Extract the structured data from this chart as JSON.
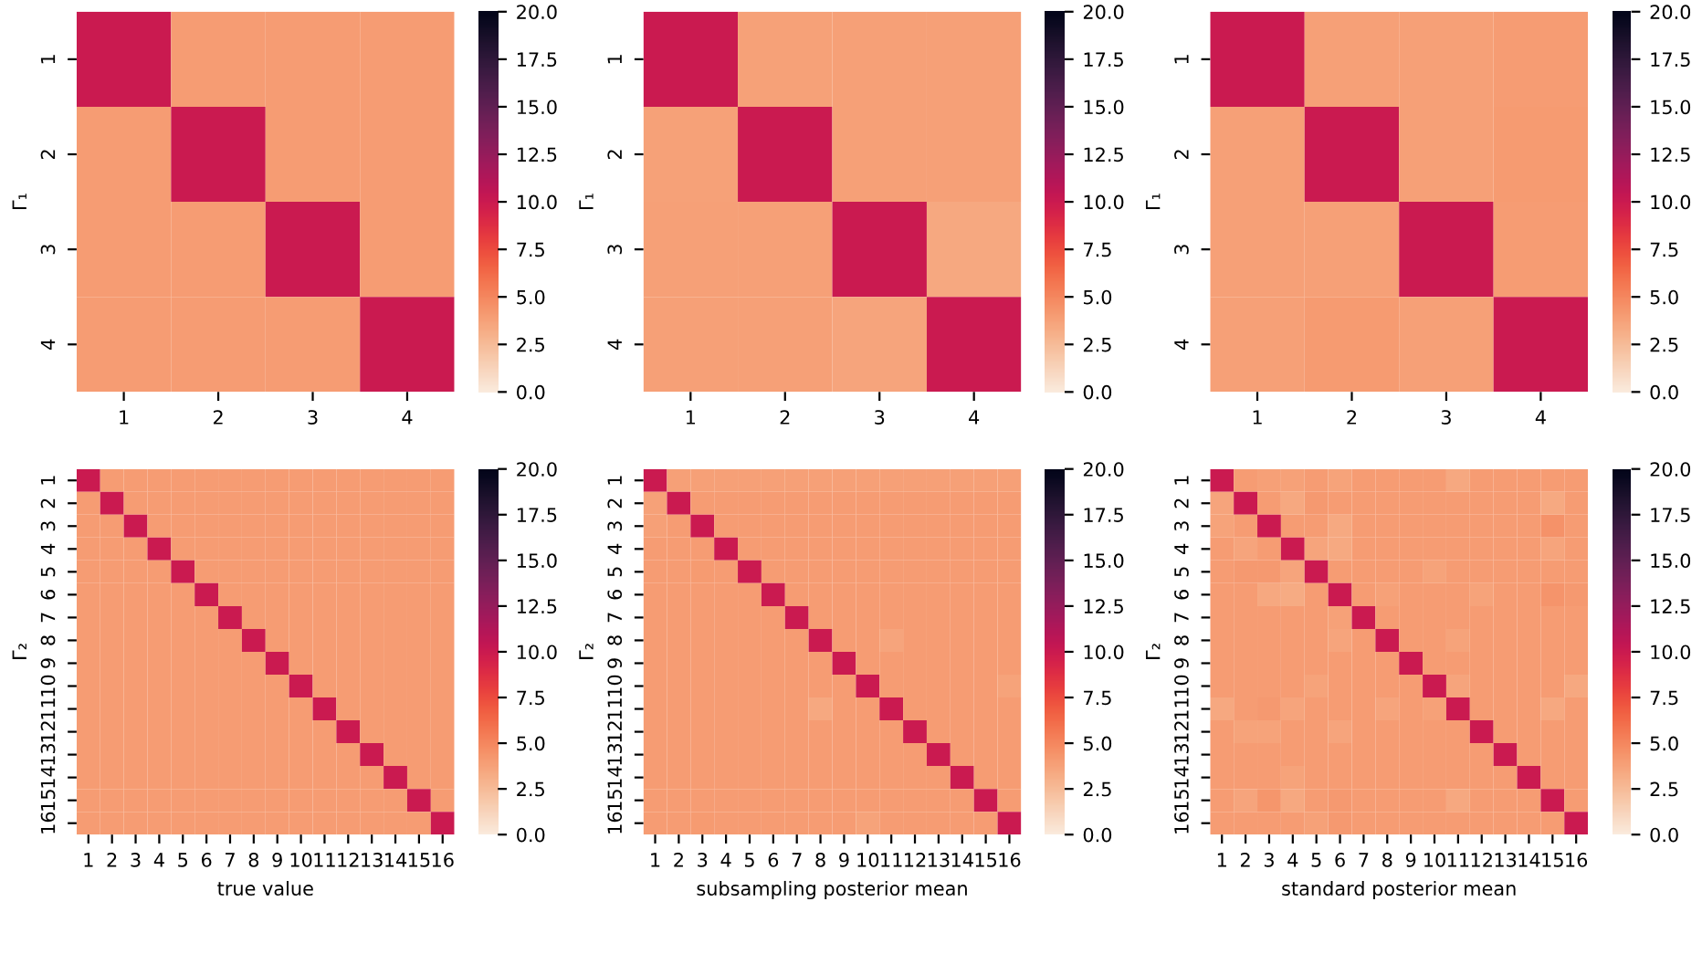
{
  "chart_data": [
    {
      "type": "heatmap",
      "ylabel": "Γ₁",
      "categories": [
        "1",
        "2",
        "3",
        "4"
      ],
      "y_categories": [
        "1",
        "2",
        "3",
        "4"
      ],
      "clim": [
        0,
        20
      ],
      "cticks": [
        {
          "value": 0,
          "label": "0.0"
        },
        {
          "value": 2.5,
          "label": "2.5"
        },
        {
          "value": 5,
          "label": "5.0"
        },
        {
          "value": 7.5,
          "label": "7.5"
        },
        {
          "value": 10,
          "label": "10.0"
        },
        {
          "value": 12.5,
          "label": "12.5"
        },
        {
          "value": 15,
          "label": "15.0"
        },
        {
          "value": 17.5,
          "label": "17.5"
        },
        {
          "value": 20,
          "label": "20.0"
        }
      ],
      "cells": [
        [
          10,
          4,
          4,
          4
        ],
        [
          4,
          10,
          4,
          4
        ],
        [
          4,
          4,
          10,
          4
        ],
        [
          4,
          4,
          4,
          10
        ]
      ]
    },
    {
      "type": "heatmap",
      "ylabel": "Γ₁",
      "categories": [
        "1",
        "2",
        "3",
        "4"
      ],
      "y_categories": [
        "1",
        "2",
        "3",
        "4"
      ],
      "clim": [
        0,
        20
      ],
      "cticks": [
        {
          "value": 0,
          "label": "0.0"
        },
        {
          "value": 2.5,
          "label": "2.5"
        },
        {
          "value": 5,
          "label": "5.0"
        },
        {
          "value": 7.5,
          "label": "7.5"
        },
        {
          "value": 10,
          "label": "10.0"
        },
        {
          "value": 12.5,
          "label": "12.5"
        },
        {
          "value": 15,
          "label": "15.0"
        },
        {
          "value": 17.5,
          "label": "17.5"
        },
        {
          "value": 20,
          "label": "20.0"
        }
      ],
      "cells": [
        [
          10,
          3.8,
          3.9,
          3.9
        ],
        [
          3.8,
          10,
          3.9,
          3.9
        ],
        [
          3.9,
          3.9,
          10,
          3.5
        ],
        [
          3.9,
          3.9,
          3.6,
          10
        ]
      ]
    },
    {
      "type": "heatmap",
      "ylabel": "Γ₁",
      "categories": [
        "1",
        "2",
        "3",
        "4"
      ],
      "y_categories": [
        "1",
        "2",
        "3",
        "4"
      ],
      "clim": [
        0,
        20
      ],
      "cticks": [
        {
          "value": 0,
          "label": "0.0"
        },
        {
          "value": 2.5,
          "label": "2.5"
        },
        {
          "value": 5,
          "label": "5.0"
        },
        {
          "value": 7.5,
          "label": "7.5"
        },
        {
          "value": 10,
          "label": "10.0"
        },
        {
          "value": 12.5,
          "label": "12.5"
        },
        {
          "value": 15,
          "label": "15.0"
        },
        {
          "value": 17.5,
          "label": "17.5"
        },
        {
          "value": 20,
          "label": "20.0"
        }
      ],
      "cells": [
        [
          10,
          3.9,
          3.9,
          4.0
        ],
        [
          3.9,
          10,
          3.9,
          4.1
        ],
        [
          3.9,
          3.9,
          10,
          4.0
        ],
        [
          3.9,
          4.1,
          3.9,
          10
        ]
      ]
    },
    {
      "type": "heatmap",
      "xlabel": "true value",
      "ylabel": "Γ₂",
      "categories": [
        "1",
        "2",
        "3",
        "4",
        "5",
        "6",
        "7",
        "8",
        "9",
        "10",
        "11",
        "12",
        "13",
        "14",
        "15",
        "16"
      ],
      "y_categories": [
        "1",
        "2",
        "3",
        "4",
        "5",
        "6",
        "7",
        "8",
        "9",
        "10",
        "11",
        "12",
        "13",
        "14",
        "15",
        "16"
      ],
      "clim": [
        0,
        20
      ],
      "cticks": [
        {
          "value": 0,
          "label": "0.0"
        },
        {
          "value": 2.5,
          "label": "2.5"
        },
        {
          "value": 5,
          "label": "5.0"
        },
        {
          "value": 7.5,
          "label": "7.5"
        },
        {
          "value": 10,
          "label": "10.0"
        },
        {
          "value": 12.5,
          "label": "12.5"
        },
        {
          "value": 15,
          "label": "15.0"
        },
        {
          "value": 17.5,
          "label": "17.5"
        },
        {
          "value": 20,
          "label": "20.0"
        }
      ],
      "cells": [
        [
          10,
          4,
          4,
          4,
          4,
          4,
          4,
          4,
          4,
          4,
          4,
          4,
          4,
          4,
          4,
          4
        ],
        [
          4,
          10,
          4,
          4,
          4,
          4,
          4,
          4,
          4,
          4,
          4,
          4,
          4,
          4,
          4,
          4
        ],
        [
          4,
          4,
          10,
          4,
          4,
          4,
          4,
          4,
          4,
          4,
          4,
          4,
          4,
          4,
          4,
          4
        ],
        [
          4,
          4,
          4,
          10,
          4,
          4,
          4,
          4,
          4,
          4,
          4,
          4,
          4,
          4,
          4,
          4
        ],
        [
          4,
          4,
          4,
          4,
          10,
          4,
          4,
          4,
          4,
          4,
          4,
          4,
          4,
          4,
          4,
          4
        ],
        [
          4,
          4,
          4,
          4,
          4,
          10,
          4,
          4,
          4,
          4,
          4,
          4,
          4,
          4,
          4,
          4
        ],
        [
          4,
          4,
          4,
          4,
          4,
          4,
          10,
          4,
          4,
          4,
          4,
          4,
          4,
          4,
          4,
          4
        ],
        [
          4,
          4,
          4,
          4,
          4,
          4,
          4,
          10,
          4,
          4,
          4,
          4,
          4,
          4,
          4,
          4
        ],
        [
          4,
          4,
          4,
          4,
          4,
          4,
          4,
          4,
          10,
          4,
          4,
          4,
          4,
          4,
          4,
          4
        ],
        [
          4,
          4,
          4,
          4,
          4,
          4,
          4,
          4,
          4,
          10,
          4,
          4,
          4,
          4,
          4,
          4
        ],
        [
          4,
          4,
          4,
          4,
          4,
          4,
          4,
          4,
          4,
          4,
          10,
          4,
          4,
          4,
          4,
          4
        ],
        [
          4,
          4,
          4,
          4,
          4,
          4,
          4,
          4,
          4,
          4,
          4,
          10,
          4,
          4,
          4,
          4
        ],
        [
          4,
          4,
          4,
          4,
          4,
          4,
          4,
          4,
          4,
          4,
          4,
          4,
          10,
          4,
          4,
          4
        ],
        [
          4,
          4,
          4,
          4,
          4,
          4,
          4,
          4,
          4,
          4,
          4,
          4,
          4,
          10,
          4,
          4
        ],
        [
          4,
          4,
          4,
          4,
          4,
          4,
          4,
          4,
          4,
          4,
          4,
          4,
          4,
          4,
          10,
          4
        ],
        [
          4,
          4,
          4,
          4,
          4,
          4,
          4,
          4,
          4,
          4,
          4,
          4,
          4,
          4,
          4,
          10
        ]
      ]
    },
    {
      "type": "heatmap",
      "xlabel": "subsampling posterior mean",
      "ylabel": "Γ₂",
      "categories": [
        "1",
        "2",
        "3",
        "4",
        "5",
        "6",
        "7",
        "8",
        "9",
        "10",
        "11",
        "12",
        "13",
        "14",
        "15",
        "16"
      ],
      "y_categories": [
        "1",
        "2",
        "3",
        "4",
        "5",
        "6",
        "7",
        "8",
        "9",
        "10",
        "11",
        "12",
        "13",
        "14",
        "15",
        "16"
      ],
      "clim": [
        0,
        20
      ],
      "cticks": [
        {
          "value": 0,
          "label": "0.0"
        },
        {
          "value": 2.5,
          "label": "2.5"
        },
        {
          "value": 5,
          "label": "5.0"
        },
        {
          "value": 7.5,
          "label": "7.5"
        },
        {
          "value": 10,
          "label": "10.0"
        },
        {
          "value": 12.5,
          "label": "12.5"
        },
        {
          "value": 15,
          "label": "15.0"
        },
        {
          "value": 17.5,
          "label": "17.5"
        },
        {
          "value": 20,
          "label": "20.0"
        }
      ],
      "cells": [
        [
          10,
          3.9,
          3.9,
          3.9,
          3.9,
          3.9,
          3.9,
          3.9,
          3.9,
          3.9,
          3.9,
          3.9,
          3.9,
          3.9,
          3.9,
          3.9
        ],
        [
          3.8,
          10,
          4,
          4,
          4,
          4,
          4,
          4,
          4,
          4,
          4,
          4,
          4,
          4,
          4,
          4
        ],
        [
          3.9,
          4,
          10,
          4,
          4,
          4,
          4,
          4,
          4,
          4,
          4,
          4,
          4,
          4,
          4,
          4
        ],
        [
          4,
          4,
          4,
          10,
          4,
          4,
          4,
          4,
          4,
          4,
          4,
          4,
          4,
          4,
          4,
          4
        ],
        [
          4,
          4,
          4.1,
          4,
          10,
          4,
          4,
          4,
          4,
          4,
          4,
          4,
          4,
          4,
          4,
          4
        ],
        [
          4,
          4,
          4,
          4,
          4,
          10,
          4,
          4,
          4,
          4,
          4,
          4,
          4,
          4,
          4,
          4
        ],
        [
          4,
          4,
          4,
          4,
          4,
          4,
          10,
          4,
          4,
          4,
          4,
          4,
          4,
          4,
          4,
          4
        ],
        [
          4,
          4,
          4,
          4,
          4,
          4,
          4,
          10,
          4,
          4,
          3.6,
          4,
          4,
          4,
          4,
          4
        ],
        [
          4,
          4,
          4,
          4,
          4,
          4,
          4,
          4,
          10,
          4,
          4,
          4,
          4,
          4,
          4,
          4
        ],
        [
          4,
          4,
          4,
          4,
          4,
          4,
          4,
          4,
          4,
          10,
          4,
          4,
          4,
          4,
          4,
          3.7
        ],
        [
          4,
          4,
          4,
          4,
          4,
          4,
          4,
          3.5,
          4,
          4,
          10,
          4,
          4,
          4,
          4,
          4
        ],
        [
          4,
          4,
          4,
          4,
          4,
          4,
          4,
          4,
          4,
          4,
          4,
          10,
          4,
          4,
          4,
          4
        ],
        [
          4,
          4,
          4,
          4,
          4,
          4,
          4,
          4,
          4,
          4,
          4,
          4,
          10,
          4,
          4,
          4
        ],
        [
          4,
          4,
          4,
          4,
          4,
          4,
          4,
          4,
          4,
          4,
          4,
          4,
          4,
          10,
          4,
          4
        ],
        [
          4,
          4,
          4,
          4,
          4,
          4,
          4,
          4,
          4,
          4,
          4,
          4,
          4,
          4,
          10,
          4
        ],
        [
          4,
          4,
          4.1,
          4,
          4,
          4,
          4,
          4,
          4,
          3.7,
          4,
          4,
          4,
          4,
          4,
          10
        ]
      ]
    },
    {
      "type": "heatmap",
      "xlabel": "standard posterior mean",
      "ylabel": "Γ₂",
      "categories": [
        "1",
        "2",
        "3",
        "4",
        "5",
        "6",
        "7",
        "8",
        "9",
        "10",
        "11",
        "12",
        "13",
        "14",
        "15",
        "16"
      ],
      "y_categories": [
        "1",
        "2",
        "3",
        "4",
        "5",
        "6",
        "7",
        "8",
        "9",
        "10",
        "11",
        "12",
        "13",
        "14",
        "15",
        "16"
      ],
      "clim": [
        0,
        20
      ],
      "cticks": [
        {
          "value": 0,
          "label": "0.0"
        },
        {
          "value": 2.5,
          "label": "2.5"
        },
        {
          "value": 5,
          "label": "5.0"
        },
        {
          "value": 7.5,
          "label": "7.5"
        },
        {
          "value": 10,
          "label": "10.0"
        },
        {
          "value": 12.5,
          "label": "12.5"
        },
        {
          "value": 15,
          "label": "15.0"
        },
        {
          "value": 17.5,
          "label": "17.5"
        },
        {
          "value": 20,
          "label": "20.0"
        }
      ],
      "cells": [
        [
          10,
          4,
          3.9,
          3.8,
          4,
          3.7,
          4,
          4,
          4,
          4,
          3.5,
          4,
          4,
          4,
          4,
          4
        ],
        [
          3.6,
          10,
          4,
          3.5,
          4.2,
          4,
          4,
          4,
          4,
          4,
          4,
          4,
          4,
          4,
          3.4,
          4
        ],
        [
          3.7,
          4,
          10,
          4,
          4,
          3.4,
          4,
          4,
          4,
          4,
          4,
          4,
          4,
          4,
          4.5,
          4
        ],
        [
          4,
          3.6,
          4,
          10,
          3.6,
          3.4,
          4,
          4,
          4,
          4,
          4,
          4,
          4,
          4,
          3.6,
          4
        ],
        [
          4,
          4.2,
          4.2,
          3.6,
          10,
          4,
          4,
          4,
          4,
          3.7,
          4,
          4,
          4,
          4,
          4,
          4
        ],
        [
          4,
          4,
          3.5,
          3.3,
          4,
          10,
          4,
          3.8,
          4,
          4,
          4,
          3.7,
          4,
          4,
          4.4,
          4.2
        ],
        [
          4,
          4,
          4,
          4,
          4,
          3.8,
          10,
          4,
          4,
          4,
          4,
          4,
          4,
          4,
          4,
          4
        ],
        [
          4,
          4,
          4,
          4,
          4,
          3.6,
          4,
          10,
          4,
          4,
          3.7,
          4,
          4,
          4,
          4,
          4
        ],
        [
          4,
          4,
          4,
          4,
          4,
          4,
          4,
          4,
          10,
          4,
          4,
          4,
          4,
          4,
          4,
          4
        ],
        [
          4,
          4,
          4,
          4,
          3.7,
          4,
          4,
          4,
          4,
          10,
          3.6,
          4,
          4,
          4,
          4,
          3.5
        ],
        [
          3.5,
          4,
          4.2,
          3.6,
          4,
          4,
          4,
          3.6,
          4,
          3.8,
          10,
          4,
          4,
          4,
          3.5,
          4
        ],
        [
          4,
          3.7,
          3.7,
          4,
          4,
          3.6,
          4,
          4,
          4,
          4,
          4,
          10,
          4,
          4,
          4,
          4
        ],
        [
          4,
          4,
          4,
          4,
          4,
          4,
          4,
          4,
          4,
          4,
          4,
          4,
          10,
          4,
          4,
          4
        ],
        [
          4,
          4,
          4,
          3.7,
          4,
          4,
          4,
          4,
          4,
          4,
          4,
          4,
          4,
          10,
          4,
          4
        ],
        [
          4,
          3.6,
          4.3,
          3.5,
          4,
          4.2,
          4,
          4,
          4,
          4,
          3.5,
          4,
          4,
          4,
          10,
          4
        ],
        [
          4,
          4,
          4,
          4,
          3.8,
          4.2,
          4,
          4,
          4,
          4,
          4,
          4,
          4,
          4,
          4,
          10
        ]
      ]
    }
  ]
}
